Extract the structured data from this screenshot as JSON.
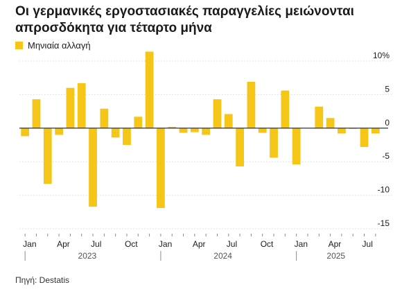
{
  "title": "Οι γερμανικές εργοστασιακές παραγγελίες μειώνονται απροσδόκητα για τέταρτο μήνα",
  "legend": {
    "label": "Μηνιαία αλλαγή",
    "color": "#f5c518"
  },
  "source": "Πηγή: Destatis",
  "chart_data": {
    "type": "bar",
    "series": [
      {
        "name": "Μηνιαία αλλαγή",
        "values": [
          -1.2,
          4.3,
          -8.3,
          -1.0,
          6.0,
          6.7,
          -11.7,
          2.9,
          -1.4,
          -2.5,
          1.7,
          11.4,
          -11.9,
          0.2,
          -0.7,
          -0.6,
          -1.0,
          4.3,
          2.1,
          -5.7,
          6.9,
          -0.7,
          -4.4,
          5.6,
          -5.4,
          0.0,
          3.2,
          1.5,
          -0.8,
          -0.1,
          -2.8,
          -0.8
        ]
      }
    ],
    "x_labels": [
      {
        "index": 0,
        "text": "Jan"
      },
      {
        "index": 3,
        "text": "Apr"
      },
      {
        "index": 6,
        "text": "Jul"
      },
      {
        "index": 9,
        "text": "Oct"
      },
      {
        "index": 12,
        "text": "Jan"
      },
      {
        "index": 15,
        "text": "Apr"
      },
      {
        "index": 18,
        "text": "Jul"
      },
      {
        "index": 21,
        "text": "Oct"
      },
      {
        "index": 24,
        "text": "Jan"
      },
      {
        "index": 27,
        "text": "Apr"
      },
      {
        "index": 30,
        "text": "Jul"
      }
    ],
    "year_labels": [
      {
        "start": 0,
        "end": 12,
        "text": "2023"
      },
      {
        "start": 12,
        "end": 24,
        "text": "2024"
      },
      {
        "start": 24,
        "end": 32,
        "text": "2025"
      }
    ],
    "y_ticks": [
      {
        "value": 10,
        "text": "10%"
      },
      {
        "value": 5,
        "text": "5"
      },
      {
        "value": 0,
        "text": "0"
      },
      {
        "value": -5,
        "text": "-5"
      },
      {
        "value": -10,
        "text": "-10"
      },
      {
        "value": -15,
        "text": "-15"
      }
    ],
    "ylim": [
      -15,
      10
    ],
    "grid": true,
    "legend_position": "top-left"
  }
}
